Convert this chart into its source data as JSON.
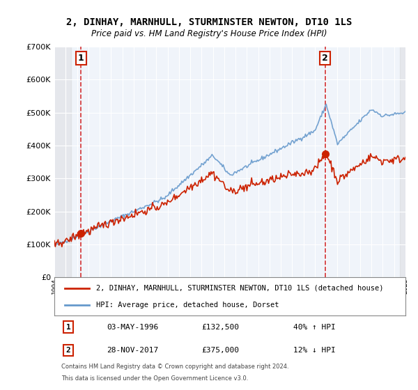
{
  "title": "2, DINHAY, MARNHULL, STURMINSTER NEWTON, DT10 1LS",
  "subtitle": "Price paid vs. HM Land Registry's House Price Index (HPI)",
  "legend_line1": "2, DINHAY, MARNHULL, STURMINSTER NEWTON, DT10 1LS (detached house)",
  "legend_line2": "HPI: Average price, detached house, Dorset",
  "table_row1_num": "1",
  "table_row1_date": "03-MAY-1996",
  "table_row1_price": "£132,500",
  "table_row1_hpi": "40% ↑ HPI",
  "table_row2_num": "2",
  "table_row2_date": "28-NOV-2017",
  "table_row2_price": "£375,000",
  "table_row2_hpi": "12% ↓ HPI",
  "footnote1": "Contains HM Land Registry data © Crown copyright and database right 2024.",
  "footnote2": "This data is licensed under the Open Government Licence v3.0.",
  "sale1_year": 1996.35,
  "sale1_price": 132500,
  "sale2_year": 2017.91,
  "sale2_price": 375000,
  "hpi_color": "#6699cc",
  "price_color": "#cc2200",
  "sale_dot_color": "#cc2200",
  "vline_color": "#cc0000",
  "bg_color": "#f0f4fa",
  "plot_bg_color": "#f0f4fa",
  "grid_color": "#ffffff",
  "xmin": 1994,
  "xmax": 2025,
  "ymin": 0,
  "ymax": 700000,
  "yticks": [
    0,
    100000,
    200000,
    300000,
    400000,
    500000,
    600000,
    700000
  ],
  "ytick_labels": [
    "£0",
    "£100K",
    "£200K",
    "£300K",
    "£400K",
    "£500K",
    "£600K",
    "£700K"
  ]
}
